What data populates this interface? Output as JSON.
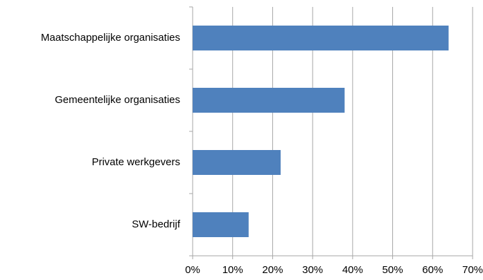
{
  "chart_data": {
    "type": "bar",
    "orientation": "horizontal",
    "categories": [
      "Maatschappelijke organisaties",
      "Gemeentelijke organisaties",
      "Private werkgevers",
      "SW-bedrijf"
    ],
    "values": [
      64,
      38,
      22,
      14
    ],
    "color": "#4f81bd",
    "xlim": [
      0,
      70
    ],
    "xticks": [
      {
        "value": 0,
        "label": "0%"
      },
      {
        "value": 10,
        "label": "10%"
      },
      {
        "value": 20,
        "label": "20%"
      },
      {
        "value": 30,
        "label": "30%"
      },
      {
        "value": 40,
        "label": "40%"
      },
      {
        "value": 50,
        "label": "50%"
      },
      {
        "value": 60,
        "label": "60%"
      },
      {
        "value": 70,
        "label": "70%"
      }
    ],
    "grid": true
  }
}
